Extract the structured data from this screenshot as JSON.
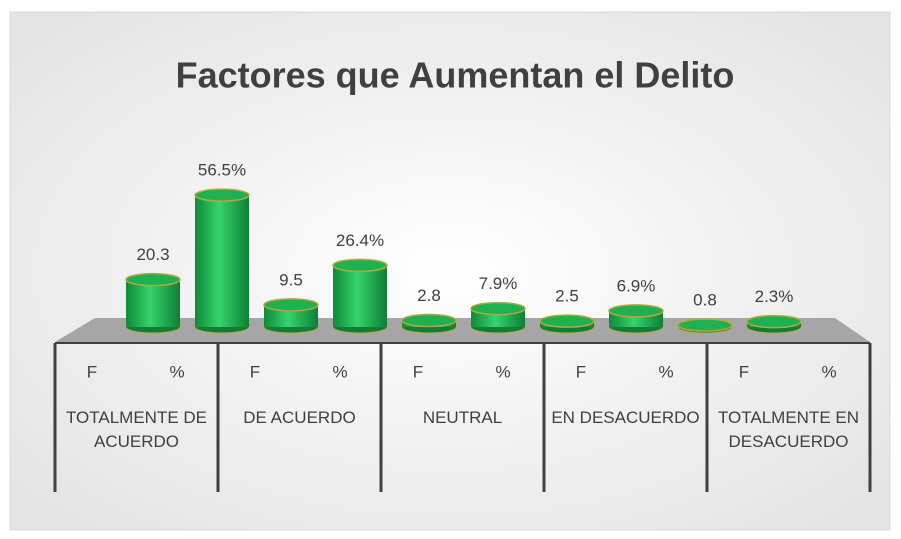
{
  "chart_data": {
    "type": "bar3d",
    "title": "Factores que Aumentan el Delito",
    "categories": [
      "TOTALMENTE DE ACUERDO",
      "DE ACUERDO",
      "NEUTRAL",
      "EN DESACUERDO",
      "TOTALMENTE EN DESACUERDO"
    ],
    "series": [
      {
        "name": "F",
        "color": "#1fb04f",
        "values": [
          20.3,
          9.5,
          2.8,
          2.5,
          0.8
        ]
      },
      {
        "name": "%",
        "color": "#1fb04f",
        "values": [
          56.5,
          26.4,
          7.9,
          6.9,
          2.3
        ],
        "value_labels": [
          "56.5%",
          "26.4%",
          "7.9%",
          "6.9%",
          "2.3%"
        ]
      }
    ],
    "ylim": [
      0,
      60
    ]
  }
}
